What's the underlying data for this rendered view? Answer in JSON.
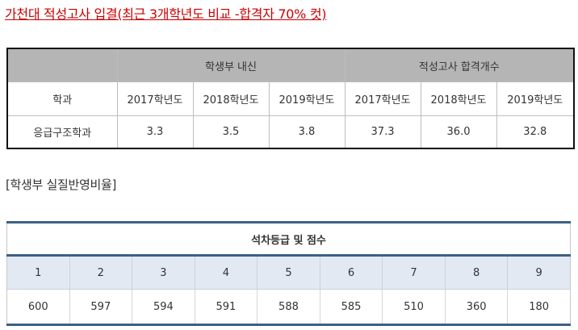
{
  "title": "가천대 적성고사 입결(최근 3개학년도 비교 -합격자 70% 컷)",
  "table1": {
    "group_naesin": "학생부 내신",
    "group_aptitude": "적성고사 합격개수",
    "dept_header": "학과",
    "years": [
      "2017학년도",
      "2018학년도",
      "2019학년도",
      "2017학년도",
      "2018학년도",
      "2019학년도"
    ],
    "rows": [
      {
        "dept": "응급구조학과",
        "values": [
          "3.3",
          "3.5",
          "3.8",
          "37.3",
          "36.0",
          "32.8"
        ]
      }
    ]
  },
  "section_title": "[학생부 실질반영비율]",
  "table2": {
    "caption": "석차등급 및 점수",
    "grades": [
      "1",
      "2",
      "3",
      "4",
      "5",
      "6",
      "7",
      "8",
      "9"
    ],
    "scores": [
      "600",
      "597",
      "594",
      "591",
      "588",
      "585",
      "510",
      "360",
      "180"
    ]
  }
}
